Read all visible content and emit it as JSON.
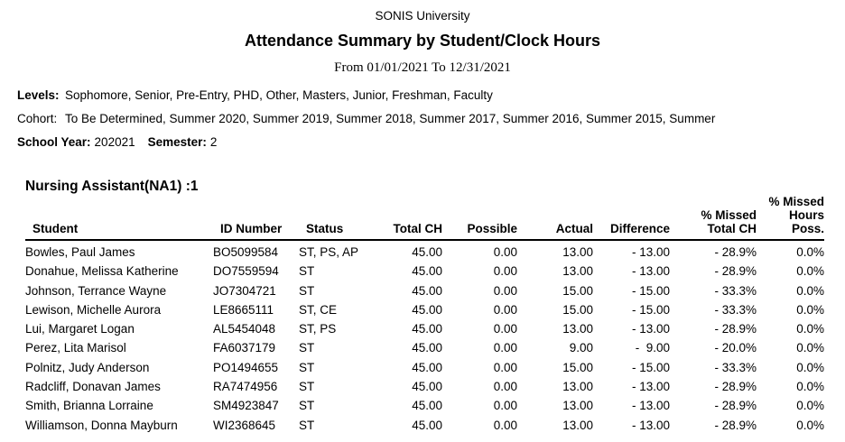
{
  "colors": {
    "text": "#000000",
    "rule": "#000000",
    "background": "#ffffff"
  },
  "header": {
    "organization": "SONIS University",
    "title": "Attendance Summary by Student/Clock Hours",
    "date_range": "From 01/01/2021 To 12/31/2021"
  },
  "filters": {
    "levels_label": "Levels:",
    "levels_value": "Sophomore, Senior, Pre-Entry, PHD, Other, Masters, Junior, Freshman, Faculty",
    "cohort_label": "Cohort:",
    "cohort_value": "To Be Determined, Summer 2020, Summer 2019, Summer 2018, Summer 2017, Summer 2016, Summer 2015, Summer",
    "school_year_label": "School Year:",
    "school_year_value": "202021",
    "semester_label": "Semester:",
    "semester_value": "2"
  },
  "section": {
    "title": "Nursing Assistant(NA1) :1"
  },
  "table": {
    "columns": {
      "student": "Student",
      "id_number": "ID Number",
      "status": "Status",
      "total_ch": "Total CH",
      "possible": "Possible",
      "actual": "Actual",
      "difference": "Difference",
      "pct_missed_total_ch": "% Missed\nTotal CH",
      "pct_missed_hours_poss": "% Missed\nHours\nPoss."
    },
    "rows": [
      {
        "student": "Bowles, Paul James",
        "id": "BO5099584",
        "status": "ST, PS, AP",
        "total_ch": "45.00",
        "possible": "0.00",
        "actual": "13.00",
        "difference": "- 13.00",
        "pct_missed_total": "- 28.9%",
        "pct_missed_hours": "0.0%"
      },
      {
        "student": "Donahue, Melissa Katherine",
        "id": "DO7559594",
        "status": "ST",
        "total_ch": "45.00",
        "possible": "0.00",
        "actual": "13.00",
        "difference": "- 13.00",
        "pct_missed_total": "- 28.9%",
        "pct_missed_hours": "0.0%"
      },
      {
        "student": "Johnson, Terrance Wayne",
        "id": "JO7304721",
        "status": "ST",
        "total_ch": "45.00",
        "possible": "0.00",
        "actual": "15.00",
        "difference": "- 15.00",
        "pct_missed_total": "- 33.3%",
        "pct_missed_hours": "0.0%"
      },
      {
        "student": "Lewison, Michelle Aurora",
        "id": "LE8665111",
        "status": "ST, CE",
        "total_ch": "45.00",
        "possible": "0.00",
        "actual": "15.00",
        "difference": "- 15.00",
        "pct_missed_total": "- 33.3%",
        "pct_missed_hours": "0.0%"
      },
      {
        "student": "Lui, Margaret Logan",
        "id": "AL5454048",
        "status": "ST, PS",
        "total_ch": "45.00",
        "possible": "0.00",
        "actual": "13.00",
        "difference": "- 13.00",
        "pct_missed_total": "- 28.9%",
        "pct_missed_hours": "0.0%"
      },
      {
        "student": "Perez, Lita Marisol",
        "id": "FA6037179",
        "status": "ST",
        "total_ch": "45.00",
        "possible": "0.00",
        "actual": "9.00",
        "difference": "-  9.00",
        "pct_missed_total": "- 20.0%",
        "pct_missed_hours": "0.0%"
      },
      {
        "student": "Polnitz, Judy Anderson",
        "id": "PO1494655",
        "status": "ST",
        "total_ch": "45.00",
        "possible": "0.00",
        "actual": "15.00",
        "difference": "- 15.00",
        "pct_missed_total": "- 33.3%",
        "pct_missed_hours": "0.0%"
      },
      {
        "student": "Radcliff, Donavan James",
        "id": "RA7474956",
        "status": "ST",
        "total_ch": "45.00",
        "possible": "0.00",
        "actual": "13.00",
        "difference": "- 13.00",
        "pct_missed_total": "- 28.9%",
        "pct_missed_hours": "0.0%"
      },
      {
        "student": "Smith, Brianna Lorraine",
        "id": "SM4923847",
        "status": "ST",
        "total_ch": "45.00",
        "possible": "0.00",
        "actual": "13.00",
        "difference": "- 13.00",
        "pct_missed_total": "- 28.9%",
        "pct_missed_hours": "0.0%"
      },
      {
        "student": "Williamson, Donna Mayburn",
        "id": "WI2368645",
        "status": "ST",
        "total_ch": "45.00",
        "possible": "0.00",
        "actual": "13.00",
        "difference": "- 13.00",
        "pct_missed_total": "- 28.9%",
        "pct_missed_hours": "0.0%"
      }
    ]
  }
}
